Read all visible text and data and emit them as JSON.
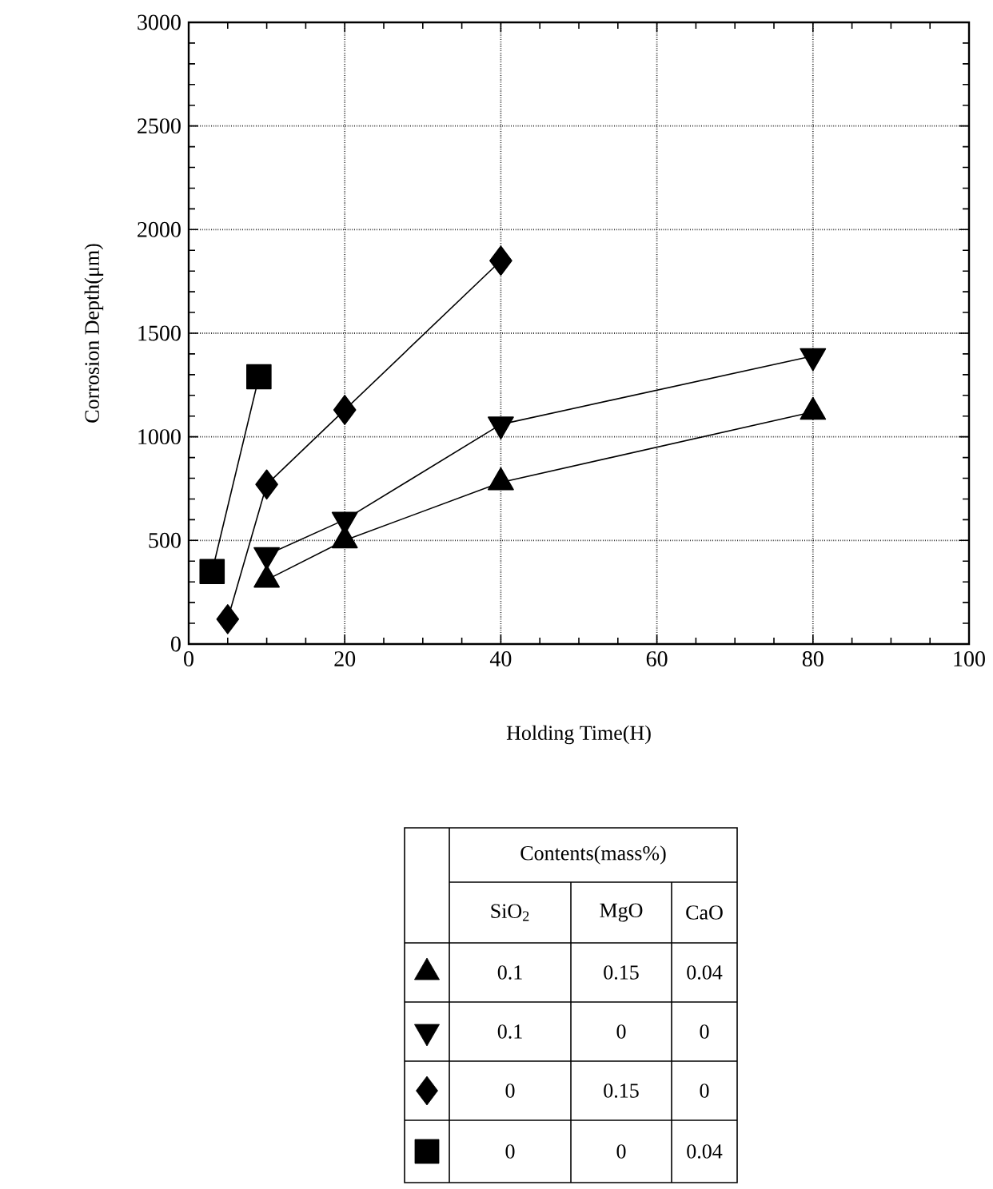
{
  "chart_data": {
    "type": "line",
    "xlabel": "Holding Time(H)",
    "ylabel": "Corrosion Depth(μm)",
    "xlim": [
      0,
      100
    ],
    "ylim": [
      0,
      3000
    ],
    "xticks": [
      0,
      20,
      40,
      60,
      80,
      100
    ],
    "yticks": [
      0,
      500,
      1000,
      1500,
      2000,
      2500,
      3000
    ],
    "grid": true,
    "legend_title": "Contents(mass%)",
    "annotations": [
      "SiO$_{2}$",
      "MgO",
      "CaO",
      "0.1",
      "0.15",
      "0.04",
      "0.1",
      "0",
      "0",
      "0",
      "0.15",
      "0",
      "0",
      "0",
      "0.04"
    ],
    "series": [
      {
        "color": "#000000",
        "marker": "triangle",
        "x": [
          10,
          20,
          40,
          80
        ],
        "values": [
          310,
          500,
          780,
          1120
        ]
      },
      {
        "color": "#000000",
        "marker": "triangle down",
        "x": [
          10,
          20,
          40,
          80
        ],
        "values": [
          430,
          600,
          1060,
          1390
        ]
      },
      {
        "color": "#000000",
        "marker": "diamond",
        "x": [
          5,
          10,
          20,
          40
        ],
        "values": [
          120,
          770,
          1130,
          1850
        ]
      },
      {
        "color": "#000000",
        "marker": "square",
        "x": [
          3,
          9
        ],
        "values": [
          350,
          1290
        ]
      }
    ]
  }
}
